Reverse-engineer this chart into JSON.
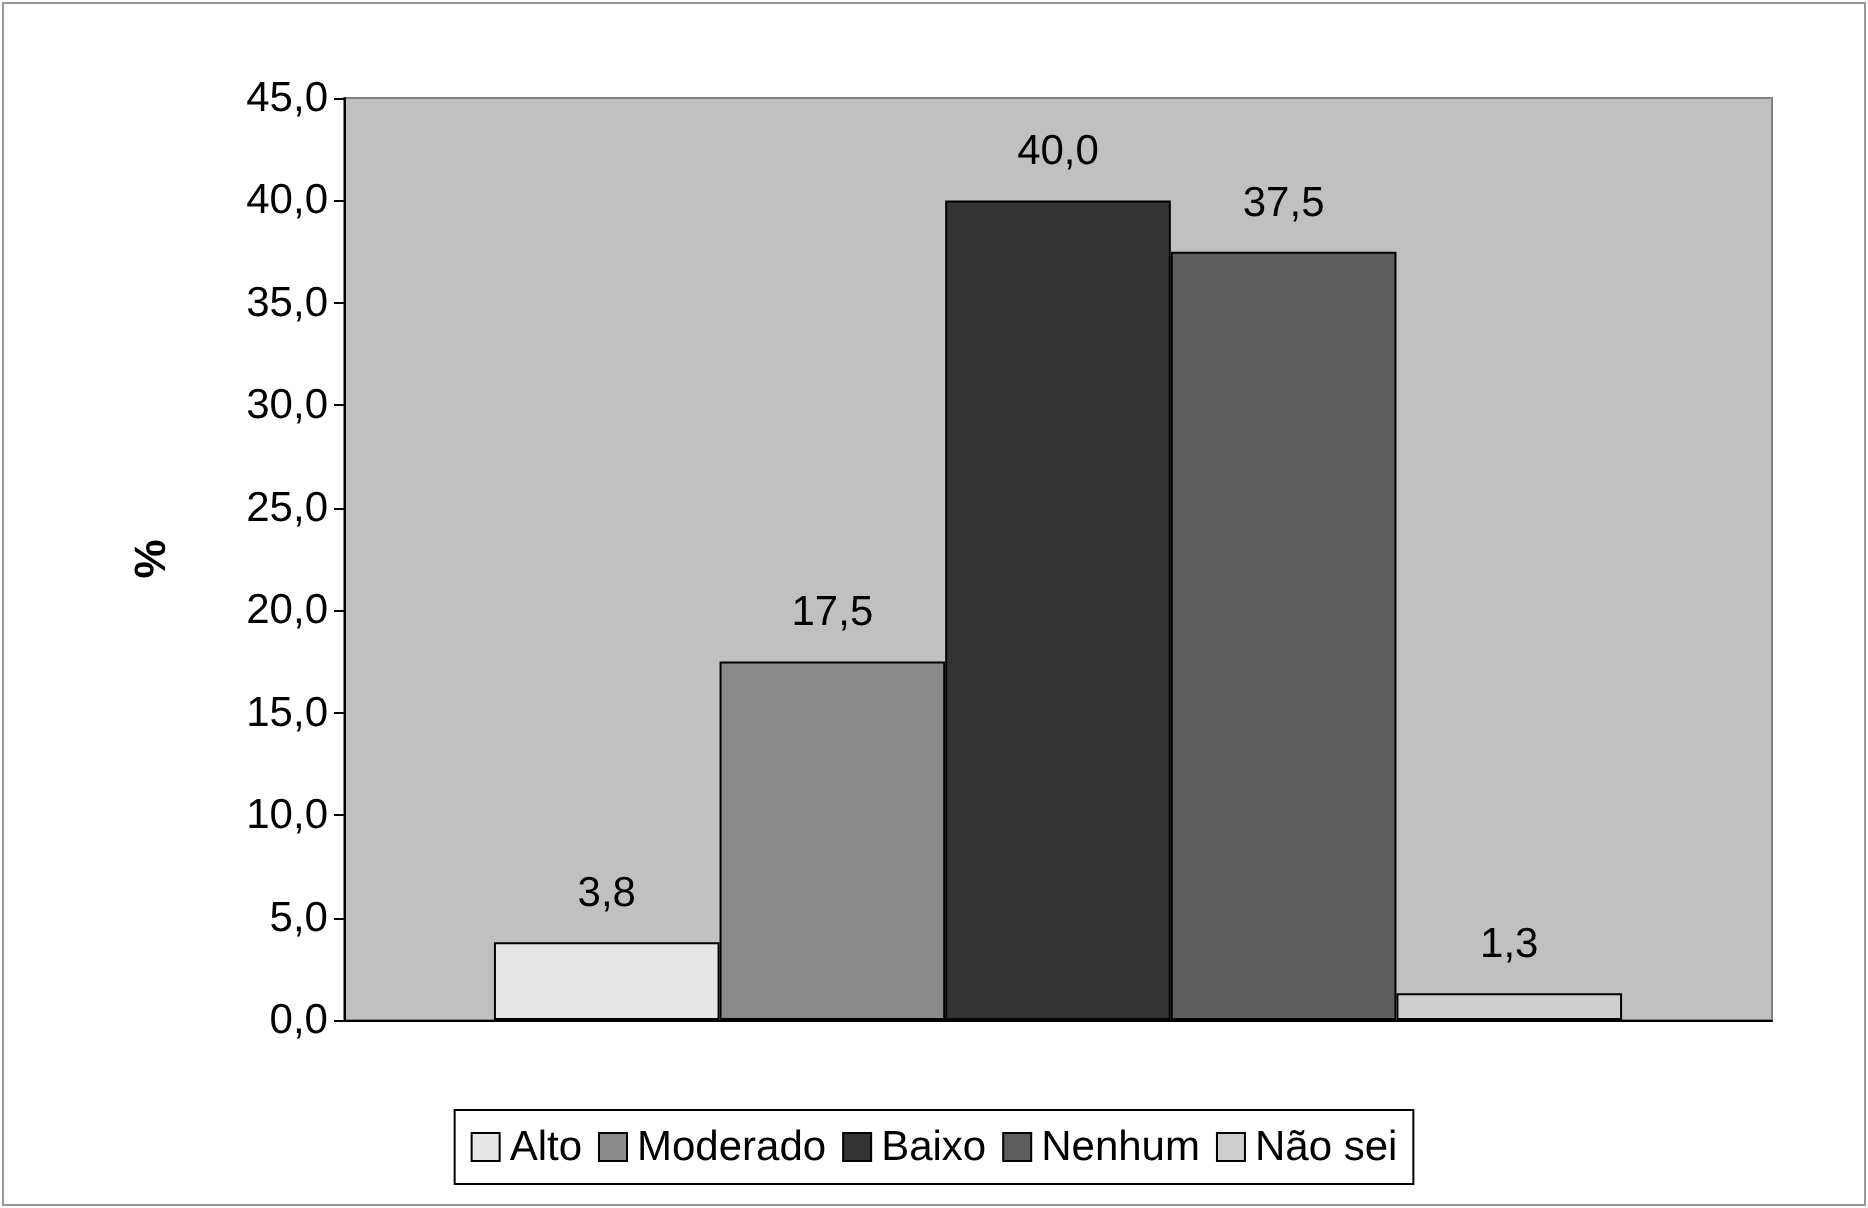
{
  "chart_data": {
    "type": "bar",
    "ylabel": "%",
    "categories": [
      null
    ],
    "series": [
      {
        "name": "Alto",
        "color": "#e6e6e6",
        "values": [
          3.8
        ],
        "value_labels": [
          "3,8"
        ]
      },
      {
        "name": "Moderado",
        "color": "#8a8a8a",
        "values": [
          17.5
        ],
        "value_labels": [
          "17,5"
        ]
      },
      {
        "name": "Baixo",
        "color": "#333333",
        "values": [
          40.0
        ],
        "value_labels": [
          "40,0"
        ]
      },
      {
        "name": "Nenhum",
        "color": "#5e5e5e",
        "values": [
          37.5
        ],
        "value_labels": [
          "37,5"
        ]
      },
      {
        "name": "Não sei",
        "color": "#cfcfcf",
        "values": [
          1.3
        ],
        "value_labels": [
          "1,3"
        ]
      }
    ],
    "ylim": [
      0,
      45
    ],
    "yticks": [
      {
        "value": 0,
        "label": "0,0"
      },
      {
        "value": 5,
        "label": "5,0"
      },
      {
        "value": 10,
        "label": "10,0"
      },
      {
        "value": 15,
        "label": "15,0"
      },
      {
        "value": 20,
        "label": "20,0"
      },
      {
        "value": 25,
        "label": "25,0"
      },
      {
        "value": 30,
        "label": "30,0"
      },
      {
        "value": 35,
        "label": "35,0"
      },
      {
        "value": 40,
        "label": "40,0"
      },
      {
        "value": 45,
        "label": "45,0"
      }
    ],
    "grid": false,
    "legend": "bottom"
  }
}
